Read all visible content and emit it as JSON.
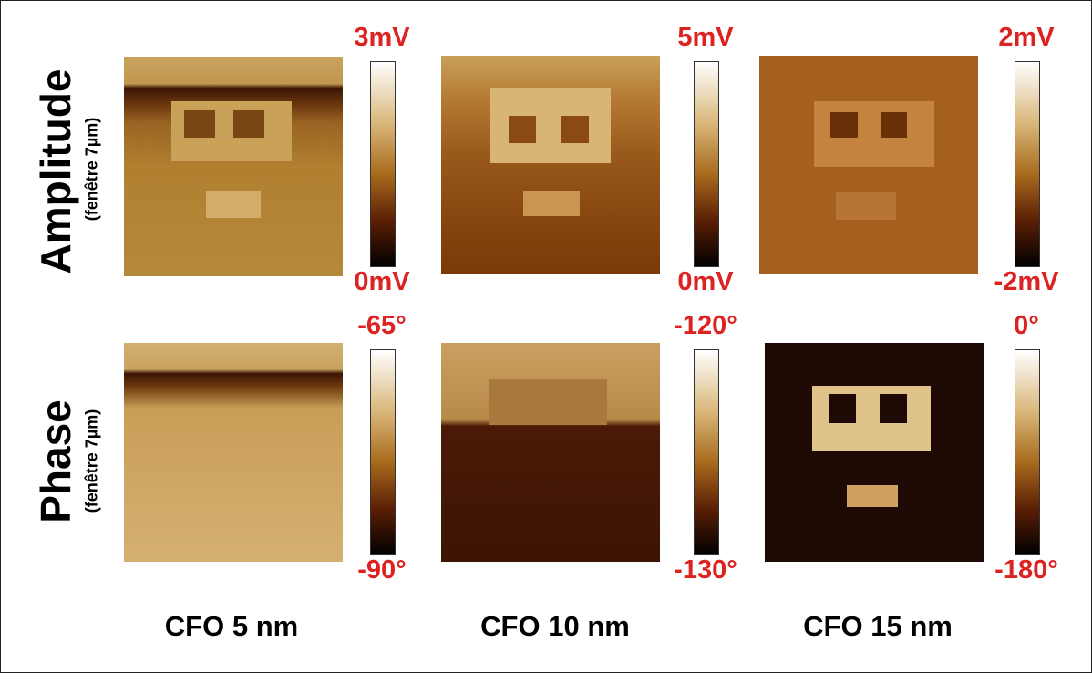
{
  "rows": [
    {
      "label": "Amplitude",
      "sublabel": "(fenêtre 7µm)"
    },
    {
      "label": "Phase",
      "sublabel": "(fenêtre 7µm)"
    }
  ],
  "columns": [
    {
      "label": "CFO 5 nm"
    },
    {
      "label": "CFO 10 nm"
    },
    {
      "label": "CFO 15 nm"
    }
  ],
  "colorbars": [
    [
      {
        "max": "3mV",
        "min": "0mV"
      },
      {
        "max": "5mV",
        "min": "0mV"
      },
      {
        "max": "2mV",
        "min": "-2mV"
      }
    ],
    [
      {
        "max": "-65°",
        "min": "-90°"
      },
      {
        "max": "-120°",
        "min": "-130°"
      },
      {
        "max": "0°",
        "min": "-180°"
      }
    ]
  ]
}
